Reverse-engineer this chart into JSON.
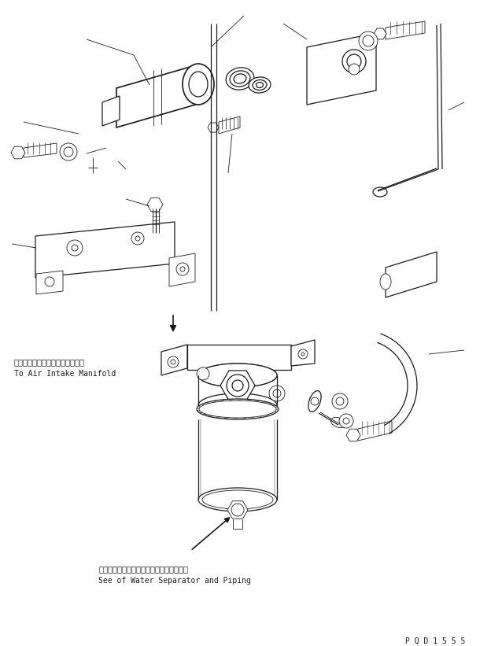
{
  "bg_color": "#ffffff",
  "line_color": "#1a1a1a",
  "annotation1_jp": "エアーインテークマニホールドヘ",
  "annotation1_en": "To Air Intake Manifold",
  "annotation2_jp": "ウォータセパレータおよびパイピング参照",
  "annotation2_en": "See of Water Separator and Piping",
  "part_number": "P Q D 1 5 5 5",
  "figsize": [
    6.24,
    8.21
  ],
  "dpi": 100
}
